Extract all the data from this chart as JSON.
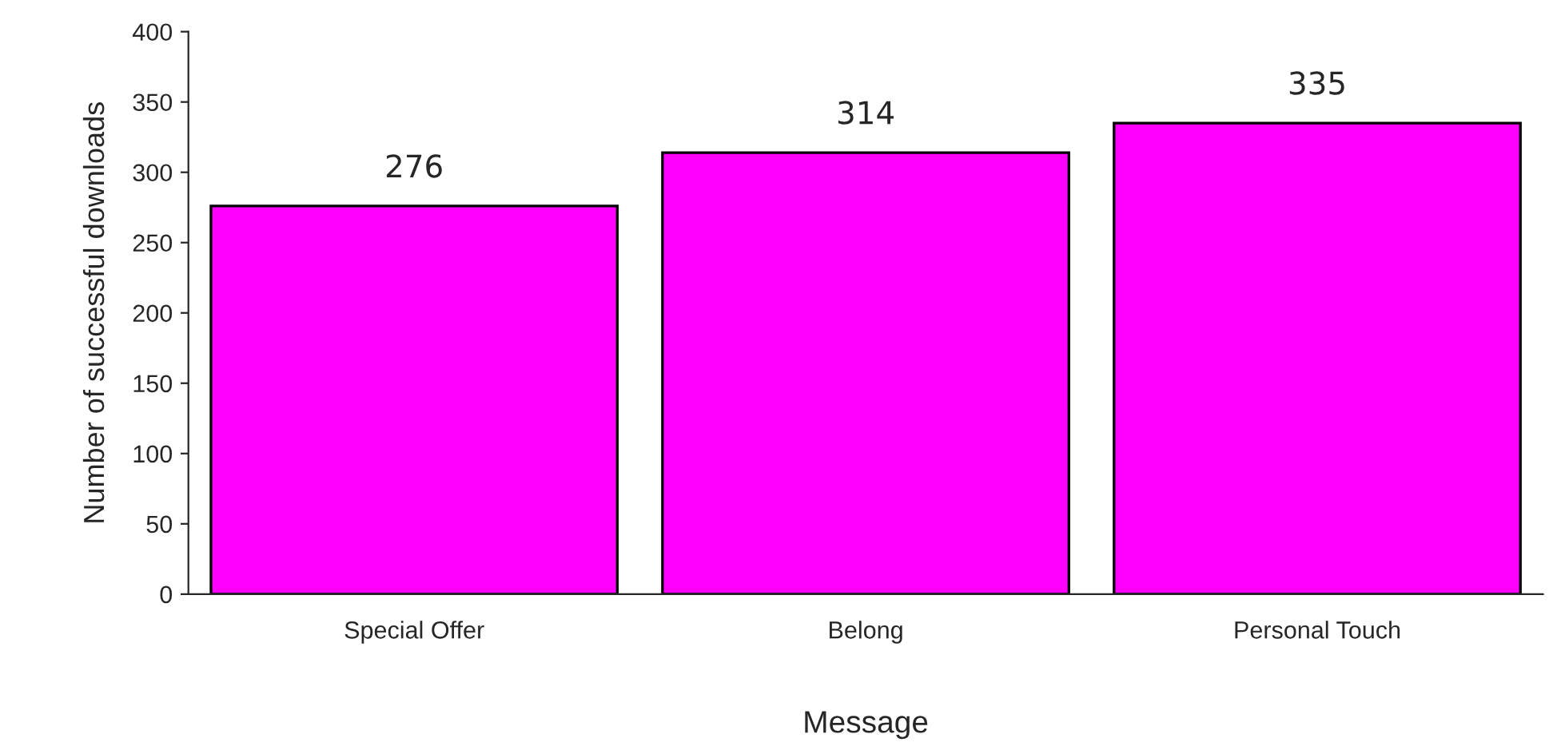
{
  "chart_data": {
    "type": "bar",
    "xlabel": "Message",
    "ylabel": "Number of successful downloads",
    "categories": [
      "Special Offer",
      "Belong",
      "Personal Touch"
    ],
    "values": [
      276,
      314,
      335
    ],
    "color": "#ff00ff",
    "ylim": [
      0,
      400
    ],
    "yticks": [
      0,
      50,
      100,
      150,
      200,
      250,
      300,
      350,
      400
    ],
    "data_labels": true,
    "grid": false,
    "legend": false
  }
}
